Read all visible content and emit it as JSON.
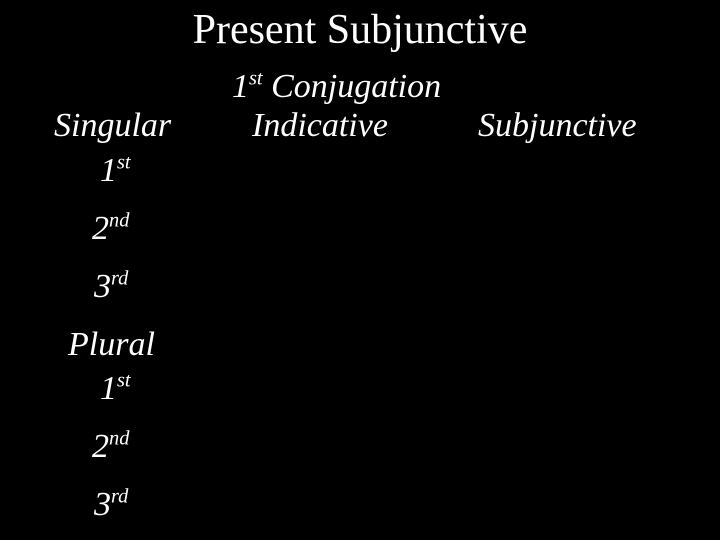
{
  "colors": {
    "background": "#000000",
    "text": "#ffffff"
  },
  "typography": {
    "font_family": "Georgia, 'Times New Roman', serif",
    "title_fontsize": 42,
    "body_fontsize": 34,
    "body_style": "italic"
  },
  "title": "Present Subjunctive",
  "headers": {
    "conjugation_num": "1",
    "conjugation_sup": "st",
    "conjugation_word": " Conjugation",
    "indicative": "Indicative",
    "subjunctive": "Subjunctive"
  },
  "number_labels": {
    "singular": "Singular",
    "plural": "Plural"
  },
  "persons": {
    "first_num": "1",
    "first_sup": "st",
    "second_num": "2",
    "second_sup": "nd",
    "third_num": "3",
    "third_sup": "rd"
  }
}
